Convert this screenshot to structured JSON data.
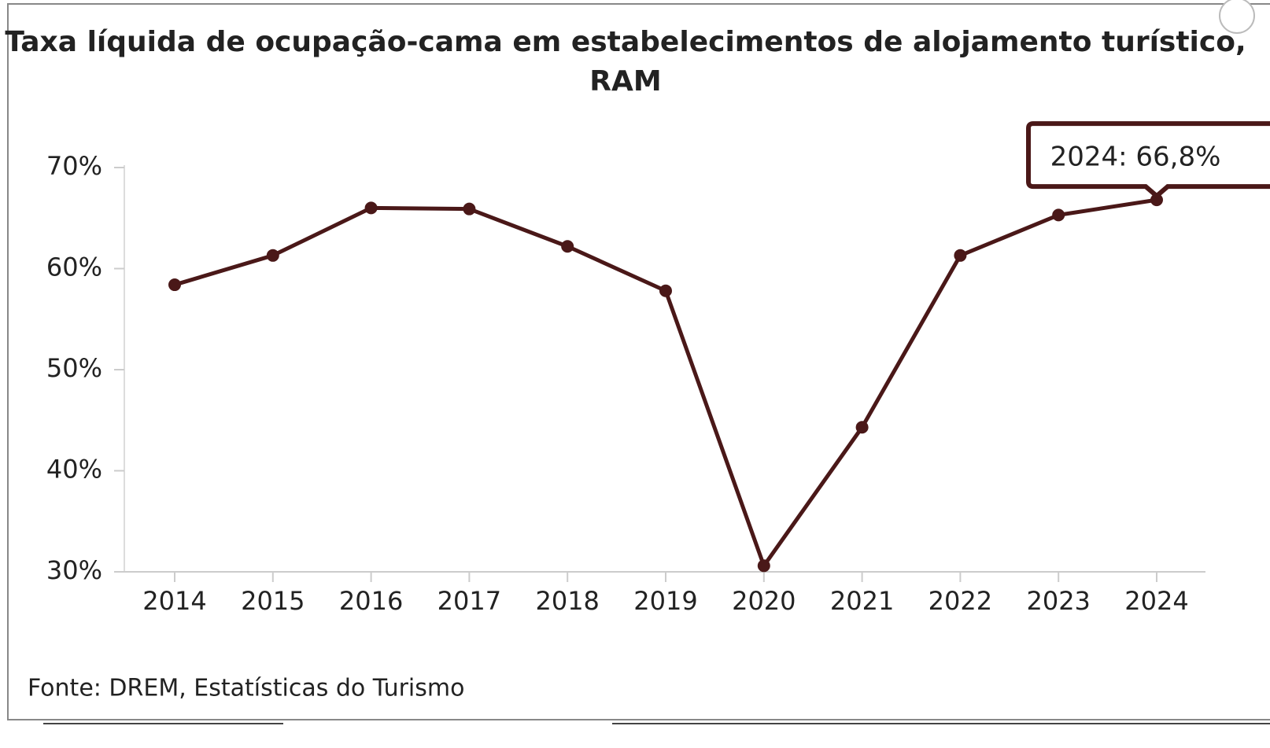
{
  "chart_data": {
    "type": "line",
    "title": "Taxa líquida de ocupação-cama em estabelecimentos de alojamento turístico,",
    "subtitle": "RAM",
    "categories": [
      "2014",
      "2015",
      "2016",
      "2017",
      "2018",
      "2019",
      "2020",
      "2021",
      "2022",
      "2023",
      "2024"
    ],
    "series": [
      {
        "name": "Taxa líquida de ocupação-cama",
        "color": "#4a1818",
        "values": [
          58.4,
          61.3,
          66.0,
          65.9,
          62.2,
          57.8,
          30.6,
          44.3,
          61.3,
          65.3,
          66.8
        ],
        "value_labels": [
          null,
          null,
          null,
          null,
          null,
          null,
          null,
          null,
          null,
          null,
          "2024: 66,8%"
        ]
      }
    ],
    "ylim": [
      30,
      70
    ],
    "yticks": [
      {
        "value": 30,
        "label": "30%"
      },
      {
        "value": 40,
        "label": "40%"
      },
      {
        "value": 50,
        "label": "50%"
      },
      {
        "value": 60,
        "label": "60%"
      },
      {
        "value": 70,
        "label": "70%"
      }
    ],
    "source": "Fonte: DREM, Estatísticas do Turismo"
  }
}
